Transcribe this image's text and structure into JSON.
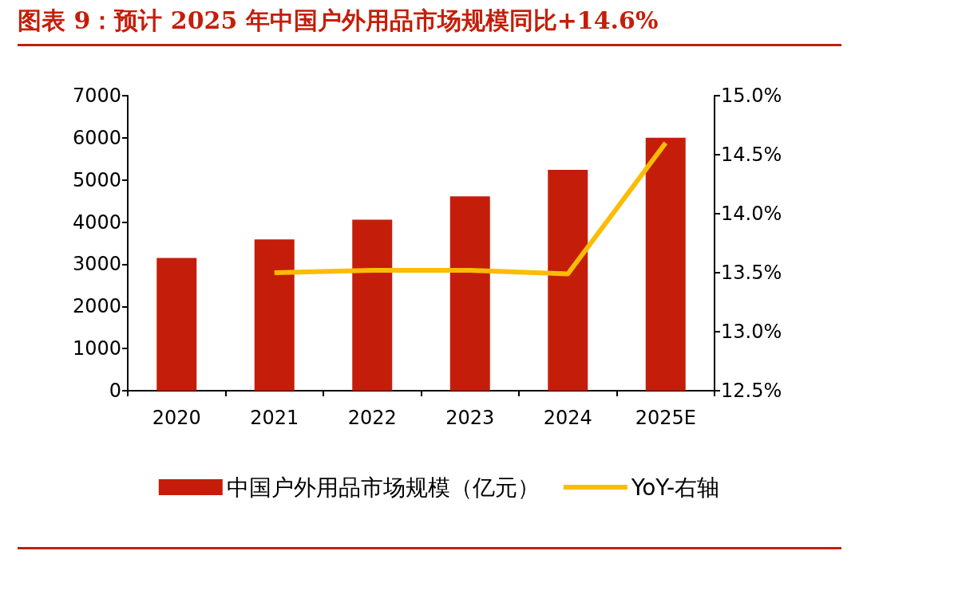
{
  "chart_data": {
    "type": "bar",
    "title": "图表 9：预计 2025 年中国户外用品市场规模同比+14.6%",
    "categories": [
      "2020",
      "2021",
      "2022",
      "2023",
      "2024",
      "2025E"
    ],
    "series": [
      {
        "name": "中国户外用品市场规模（亿元）",
        "type": "bar",
        "color": "#c41e0a",
        "values": [
          3150,
          3590,
          4060,
          4610,
          5240,
          6000
        ]
      },
      {
        "name": "YoY-右轴",
        "type": "line",
        "axis": "y2",
        "color": "#fbbc05",
        "values": [
          null,
          13.5,
          13.52,
          13.52,
          13.49,
          14.6
        ]
      }
    ],
    "ylim": [
      0,
      7000
    ],
    "yticks": [
      0,
      1000,
      2000,
      3000,
      4000,
      5000,
      6000,
      7000
    ],
    "y2lim": [
      12.5,
      15.0
    ],
    "y2ticks": [
      {
        "value": 12.5,
        "label": "12.5%"
      },
      {
        "value": 13.0,
        "label": "13.0%"
      },
      {
        "value": 13.5,
        "label": "13.5%"
      },
      {
        "value": 14.0,
        "label": "14.0%"
      },
      {
        "value": 14.5,
        "label": "14.5%"
      },
      {
        "value": 15.0,
        "label": "15.0%"
      }
    ],
    "grid": false,
    "legend": "bottom",
    "marker": "none"
  }
}
